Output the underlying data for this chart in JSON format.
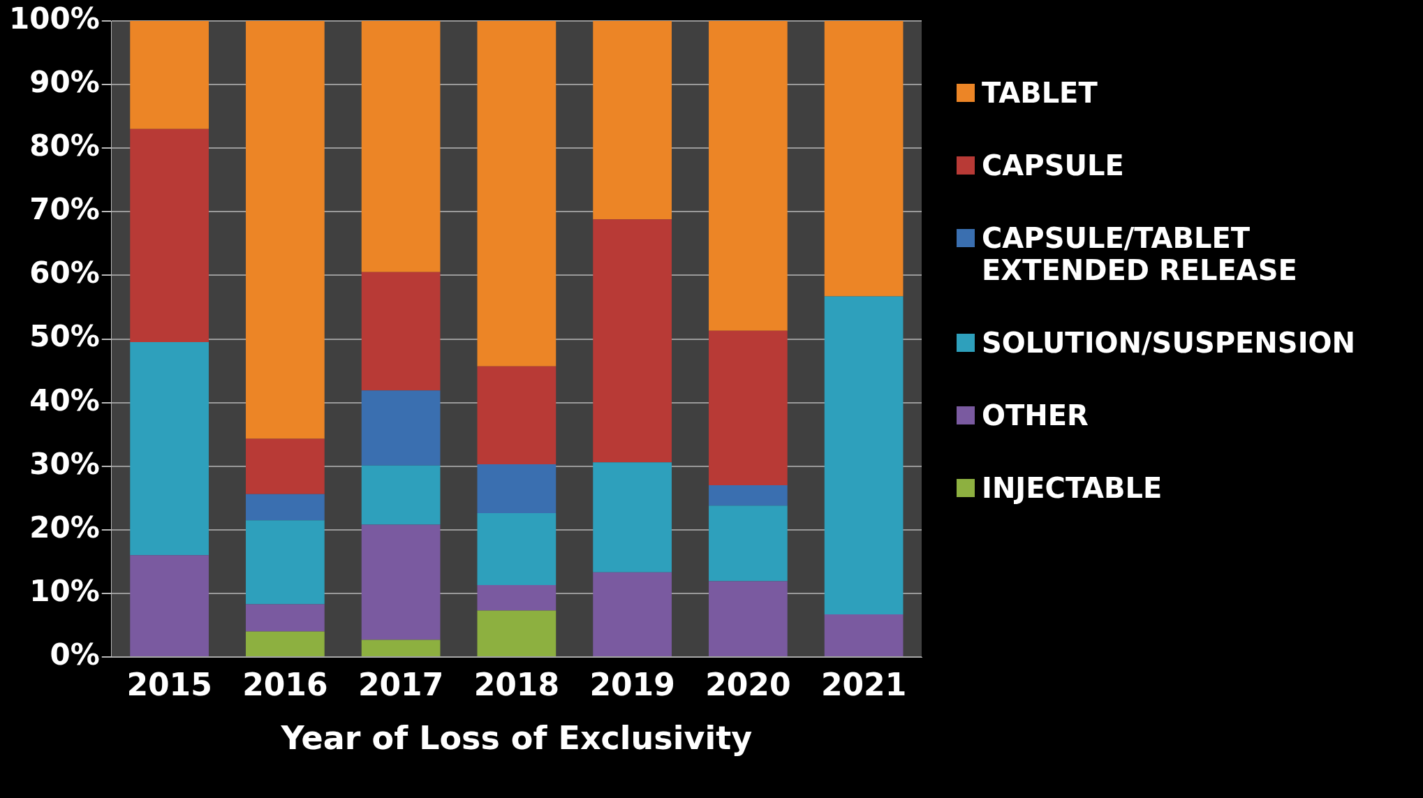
{
  "chart_data": {
    "type": "bar",
    "stacked": true,
    "xlabel": "Year of Loss of Exclusivity",
    "categories": [
      "2015",
      "2016",
      "2017",
      "2018",
      "2019",
      "2020",
      "2021"
    ],
    "series": [
      {
        "name": "INJECTABLE",
        "color": "#8db040",
        "values": [
          0,
          4,
          2.7,
          7.3,
          0,
          0,
          0
        ]
      },
      {
        "name": "OTHER",
        "color": "#7a5aa0",
        "values": [
          16,
          4.3,
          18.1,
          4,
          13.3,
          11.9,
          6.7
        ]
      },
      {
        "name": "SOLUTION/SUSPENSION",
        "color": "#2ea0bc",
        "values": [
          33.5,
          13.2,
          9.3,
          11.3,
          17.3,
          11.9,
          50
        ]
      },
      {
        "name": "CAPSULE/TABLET EXTENDED RELEASE",
        "color": "#3a6fb0",
        "values": [
          0,
          4.1,
          11.8,
          7.7,
          0,
          3.2,
          0
        ]
      },
      {
        "name": "CAPSULE",
        "color": "#b83a36",
        "values": [
          33.5,
          8.7,
          18.6,
          15.4,
          38.2,
          24.3,
          0
        ]
      },
      {
        "name": "TABLET",
        "color": "#ec8526",
        "values": [
          17,
          65.7,
          39.5,
          54.3,
          31.2,
          48.7,
          43.3
        ]
      }
    ],
    "ylim": [
      0,
      100
    ],
    "yticks": [
      {
        "value": 0,
        "label": "0%"
      },
      {
        "value": 10,
        "label": "10%"
      },
      {
        "value": 20,
        "label": "20%"
      },
      {
        "value": 30,
        "label": "30%"
      },
      {
        "value": 40,
        "label": "40%"
      },
      {
        "value": 50,
        "label": "50%"
      },
      {
        "value": 60,
        "label": "60%"
      },
      {
        "value": 70,
        "label": "70%"
      },
      {
        "value": 80,
        "label": "80%"
      },
      {
        "value": 90,
        "label": "90%"
      },
      {
        "value": 100,
        "label": "100%"
      }
    ],
    "grid": "y",
    "legend": "right"
  }
}
